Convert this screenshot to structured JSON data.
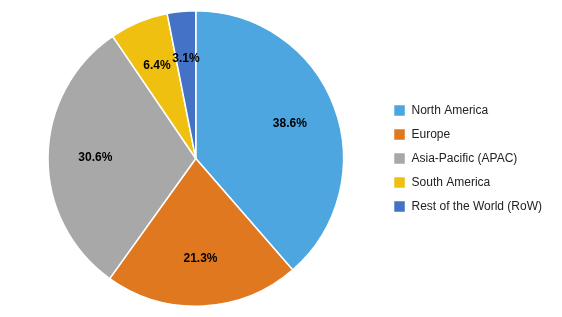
{
  "chart_data": {
    "type": "pie",
    "categories": [
      "North America",
      "Europe",
      "Asia-Pacific (APAC)",
      "South America",
      "Rest of the World (RoW)"
    ],
    "values": [
      38.6,
      21.3,
      30.6,
      6.4,
      3.1
    ],
    "value_labels": [
      "38.6%",
      "21.3%",
      "30.6%",
      "6.4%",
      "3.1%"
    ],
    "colors": [
      "#4da6e0",
      "#e07820",
      "#a8a8a8",
      "#f0c010",
      "#4472c4"
    ],
    "data_labels": true,
    "legend": "right"
  }
}
